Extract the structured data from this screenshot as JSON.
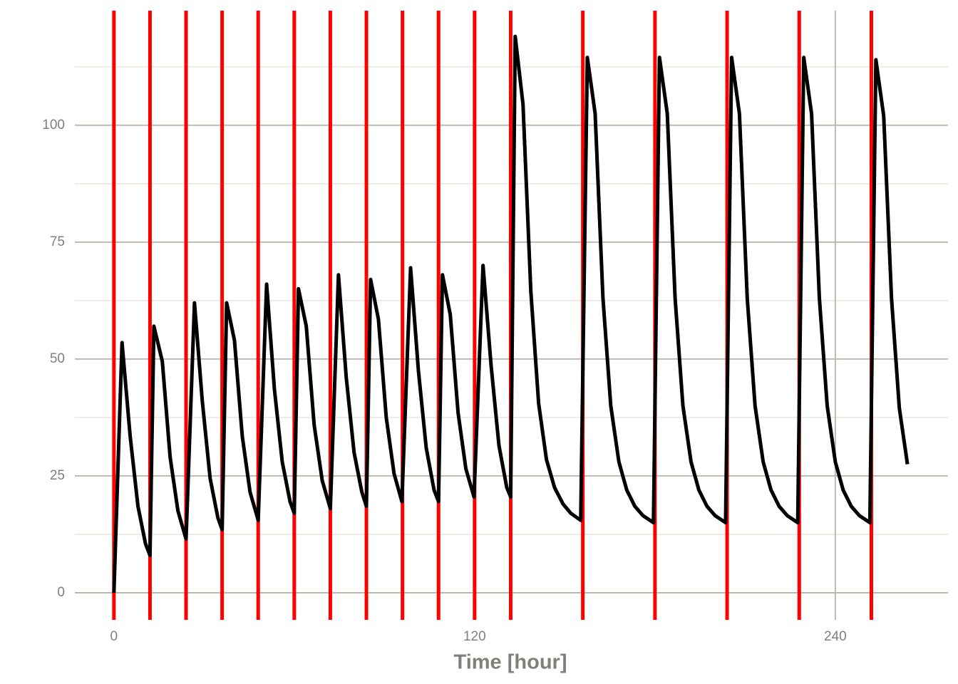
{
  "chart_data": {
    "type": "line",
    "x_label": "Time [hour]",
    "xlim": [
      -13,
      277.5
    ],
    "ylim": [
      -5.8,
      124.5
    ],
    "xticks": [
      0,
      120,
      240
    ],
    "yticks": [
      0,
      25,
      50,
      75,
      100
    ],
    "y_minor_grid": [
      12.5,
      37.5,
      62.5,
      87.5,
      112.5
    ],
    "grid": true,
    "vlines": {
      "color": "#ff0000",
      "x": [
        0,
        12,
        24,
        36,
        48,
        60,
        72,
        84,
        96,
        108,
        120,
        132,
        156,
        180,
        204,
        228,
        252
      ]
    },
    "x": [
      0,
      2.7,
      5.4,
      8,
      10.5,
      12,
      13.3,
      16.1,
      18.7,
      21.3,
      24,
      26.8,
      29.4,
      32,
      34.6,
      36,
      37.5,
      40.1,
      42.7,
      45.3,
      48,
      50.8,
      53.4,
      56,
      58.6,
      60,
      61.4,
      64,
      66.6,
      69.3,
      72,
      74.7,
      77.3,
      79.9,
      82.5,
      84,
      85.4,
      88,
      90.6,
      93.2,
      95.8,
      98.7,
      101.3,
      103.9,
      106.5,
      108,
      109.3,
      111.9,
      114.5,
      117.1,
      119.8,
      122.8,
      125.5,
      128.1,
      130.7,
      132,
      133.5,
      136.1,
      138.7,
      141.3,
      143.9,
      146.6,
      149.4,
      152,
      155.3,
      157.5,
      160.1,
      162.7,
      165.3,
      168,
      170.6,
      173.3,
      176,
      179.5,
      181.5,
      184.1,
      186.7,
      189.3,
      192,
      194.6,
      197.3,
      200,
      203.5,
      205.5,
      208.1,
      210.7,
      213.3,
      216,
      218.6,
      221.3,
      224,
      227.5,
      229.5,
      232.1,
      234.7,
      237.3,
      240,
      242.6,
      245.3,
      248,
      251.5,
      253.5,
      256.1,
      258.7,
      261.3,
      264
    ],
    "series": [
      {
        "color": "#000000",
        "values": [
          0,
          53.5,
          33.5,
          18.5,
          10.5,
          8,
          57,
          49.5,
          29,
          17.5,
          11.5,
          62,
          41,
          24.5,
          16,
          13.5,
          62,
          54,
          33.5,
          21.5,
          15.5,
          66,
          43.5,
          28,
          19.5,
          17,
          65,
          57,
          36,
          24,
          18,
          68,
          46,
          30,
          21.5,
          18.5,
          67,
          58.5,
          37.5,
          25.5,
          19.5,
          69.5,
          47.5,
          31,
          22,
          19.5,
          68,
          59.5,
          38.5,
          26.5,
          20.5,
          70,
          48.5,
          31.5,
          22.5,
          20.5,
          119,
          104.5,
          64.5,
          40.5,
          28.5,
          22.5,
          19,
          17,
          15.5,
          114.5,
          102.5,
          63,
          40,
          28,
          22,
          18.5,
          16.5,
          15,
          114.5,
          102.5,
          63,
          40,
          28,
          22,
          18.5,
          16.5,
          15,
          114.5,
          102.5,
          63,
          40,
          28,
          22,
          18.5,
          16.5,
          15,
          114.5,
          102.5,
          63,
          40,
          28,
          22,
          18.5,
          16.5,
          15,
          114,
          102,
          63,
          39.5,
          27.5
        ]
      }
    ]
  }
}
